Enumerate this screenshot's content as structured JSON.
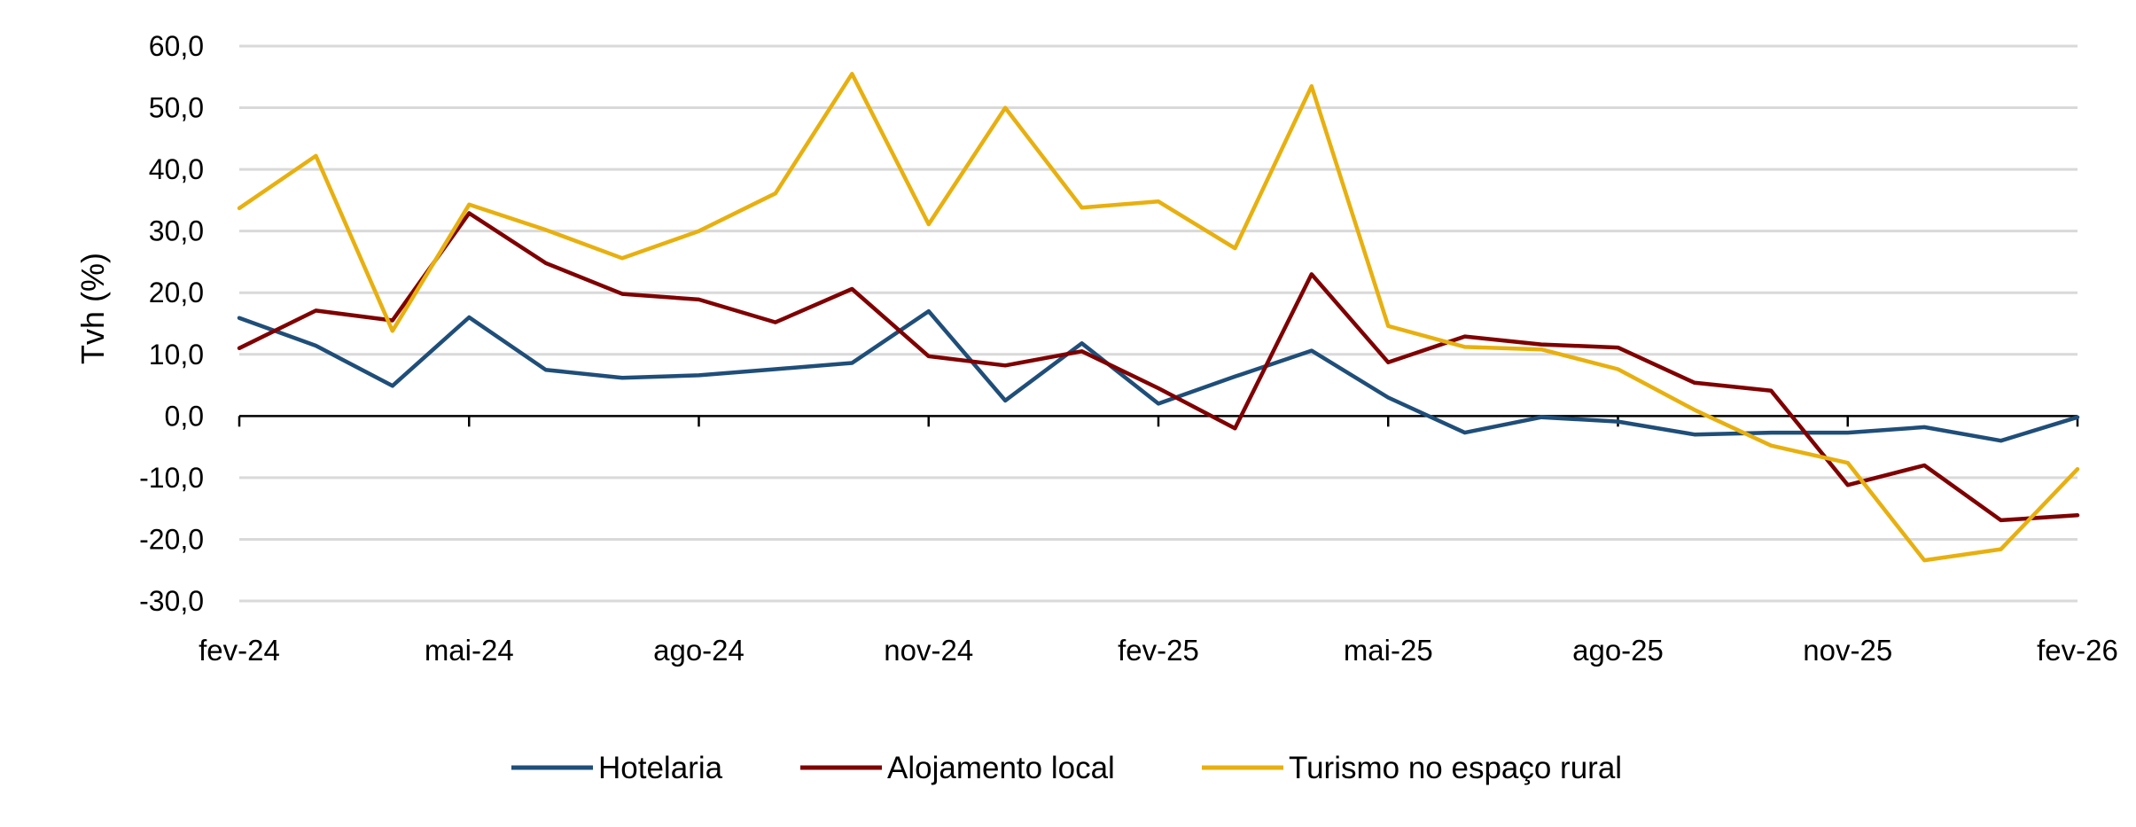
{
  "chart_data": {
    "type": "line",
    "title": "",
    "xlabel": "",
    "ylabel": "Tvh (%)",
    "ylim": [
      -30,
      60
    ],
    "yticks": [
      "60,0",
      "50,0",
      "40,0",
      "30,0",
      "20,0",
      "10,0",
      "0,0",
      "-10,0",
      "-20,0",
      "-30,0"
    ],
    "ytick_values": [
      60,
      50,
      40,
      30,
      20,
      10,
      0,
      -10,
      -20,
      -30
    ],
    "xtick_labels": [
      "fev-24",
      "mai-24",
      "ago-24",
      "nov-24",
      "fev-25",
      "mai-25",
      "ago-25",
      "nov-25",
      "fev-26"
    ],
    "xtick_indices": [
      0,
      3,
      6,
      9,
      12,
      15,
      18,
      21,
      24
    ],
    "categories": [
      "fev-24",
      "mar-24",
      "abr-24",
      "mai-24",
      "jun-24",
      "jul-24",
      "ago-24",
      "set-24",
      "out-24",
      "nov-24",
      "dez-24",
      "jan-25",
      "fev-25",
      "mar-25",
      "abr-25",
      "mai-25",
      "jun-25",
      "jul-25",
      "ago-25",
      "set-25",
      "out-25",
      "nov-25",
      "dez-25",
      "jan-26",
      "fev-26"
    ],
    "grid": true,
    "legend_position": "bottom",
    "series": [
      {
        "name": "Hotelaria",
        "color": "#1f4e79",
        "values": [
          15.9,
          11.4,
          4.9,
          16.0,
          7.5,
          6.2,
          6.6,
          7.6,
          8.6,
          17.0,
          2.5,
          11.8,
          2.0,
          6.4,
          10.6,
          3.0,
          -2.7,
          -0.2,
          -0.9,
          -3.0,
          -2.7,
          -2.7,
          -1.8,
          -4.0,
          -0.2
        ]
      },
      {
        "name": "Alojamento local",
        "color": "#7f0000",
        "values": [
          11.0,
          17.1,
          15.5,
          32.9,
          24.8,
          19.8,
          18.9,
          15.2,
          20.6,
          9.7,
          8.2,
          10.5,
          4.5,
          -2.0,
          23.0,
          8.7,
          12.9,
          11.6,
          11.1,
          5.4,
          4.1,
          -11.2,
          -8.0,
          -16.9,
          -16.1
        ]
      },
      {
        "name": "Turismo no espaço rural",
        "color": "#e8b00f",
        "values": [
          33.7,
          42.2,
          13.8,
          34.3,
          30.2,
          25.6,
          30.0,
          36.1,
          55.5,
          31.1,
          50.0,
          33.8,
          34.8,
          27.2,
          53.5,
          14.6,
          11.2,
          10.8,
          7.6,
          1.0,
          -4.8,
          -7.6,
          -23.4,
          -21.6,
          -8.6
        ]
      }
    ]
  }
}
